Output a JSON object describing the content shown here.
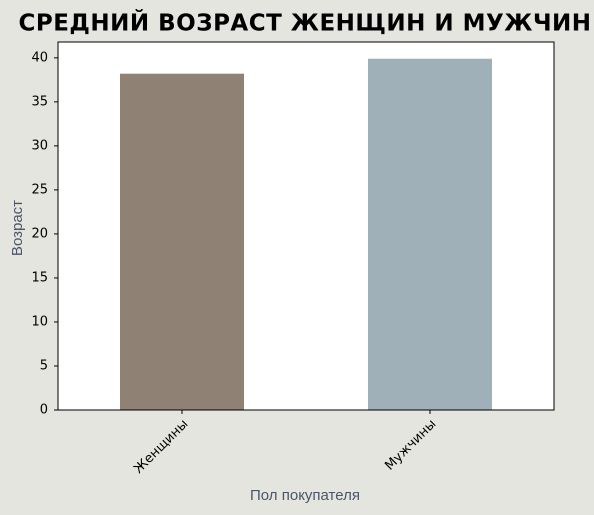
{
  "chart_data": {
    "type": "bar",
    "title": "СРЕДНИЙ ВОЗРАСТ ЖЕНЩИН И МУЖЧИН",
    "x_label": "Пол покупателя",
    "y_label": "Возраст",
    "categories": [
      "Женщины",
      "Мужчины"
    ],
    "values": [
      38.2,
      39.9
    ],
    "colors": [
      "#8f8173",
      "#9fb0b9"
    ],
    "ylim": [
      0,
      41.8
    ],
    "yticks": [
      0,
      5,
      10,
      15,
      20,
      25,
      30,
      35,
      40
    ],
    "grid": false
  }
}
